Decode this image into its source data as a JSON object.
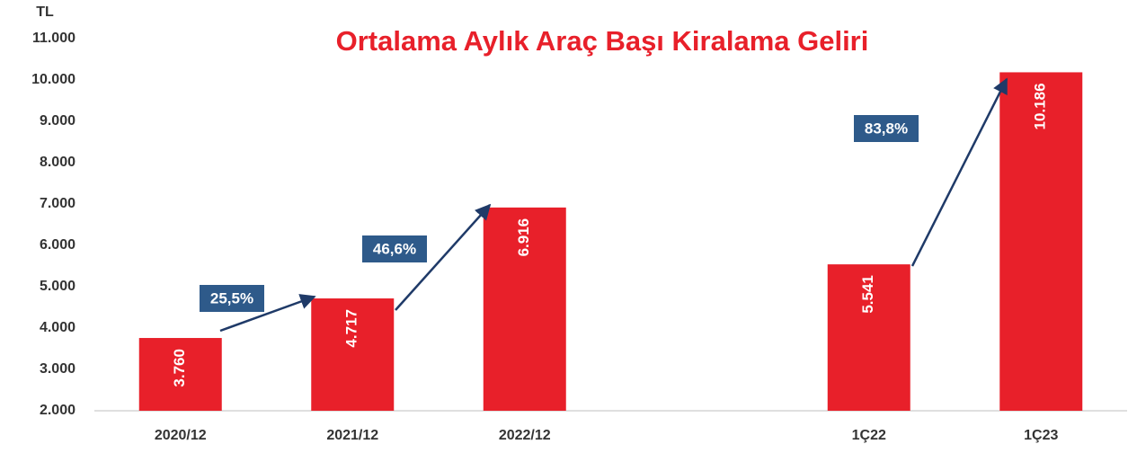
{
  "chart_data": {
    "type": "bar",
    "title": "Ortalama Aylık Araç Başı Kiralama Geliri",
    "y_label": "TL",
    "categories": [
      "2020/12",
      "2021/12",
      "2022/12",
      null,
      "1Ç22",
      "1Ç23"
    ],
    "values": [
      3760,
      4717,
      6916,
      null,
      5541,
      10186
    ],
    "value_labels": [
      "3.760",
      "4.717",
      "6.916",
      null,
      "5.541",
      "10.186"
    ],
    "color": "#e8202a",
    "ylim": [
      2000,
      11000
    ],
    "yticks": [
      {
        "value": 2000,
        "label": "2.000"
      },
      {
        "value": 3000,
        "label": "3.000"
      },
      {
        "value": 4000,
        "label": "4.000"
      },
      {
        "value": 5000,
        "label": "5.000"
      },
      {
        "value": 6000,
        "label": "6.000"
      },
      {
        "value": 7000,
        "label": "7.000"
      },
      {
        "value": 8000,
        "label": "8.000"
      },
      {
        "value": 9000,
        "label": "9.000"
      },
      {
        "value": 10000,
        "label": "10.000"
      },
      {
        "value": 11000,
        "label": "11.000"
      }
    ],
    "annotations": [
      "25,5%",
      "46,6%",
      "83,8%"
    ],
    "grid": false
  }
}
